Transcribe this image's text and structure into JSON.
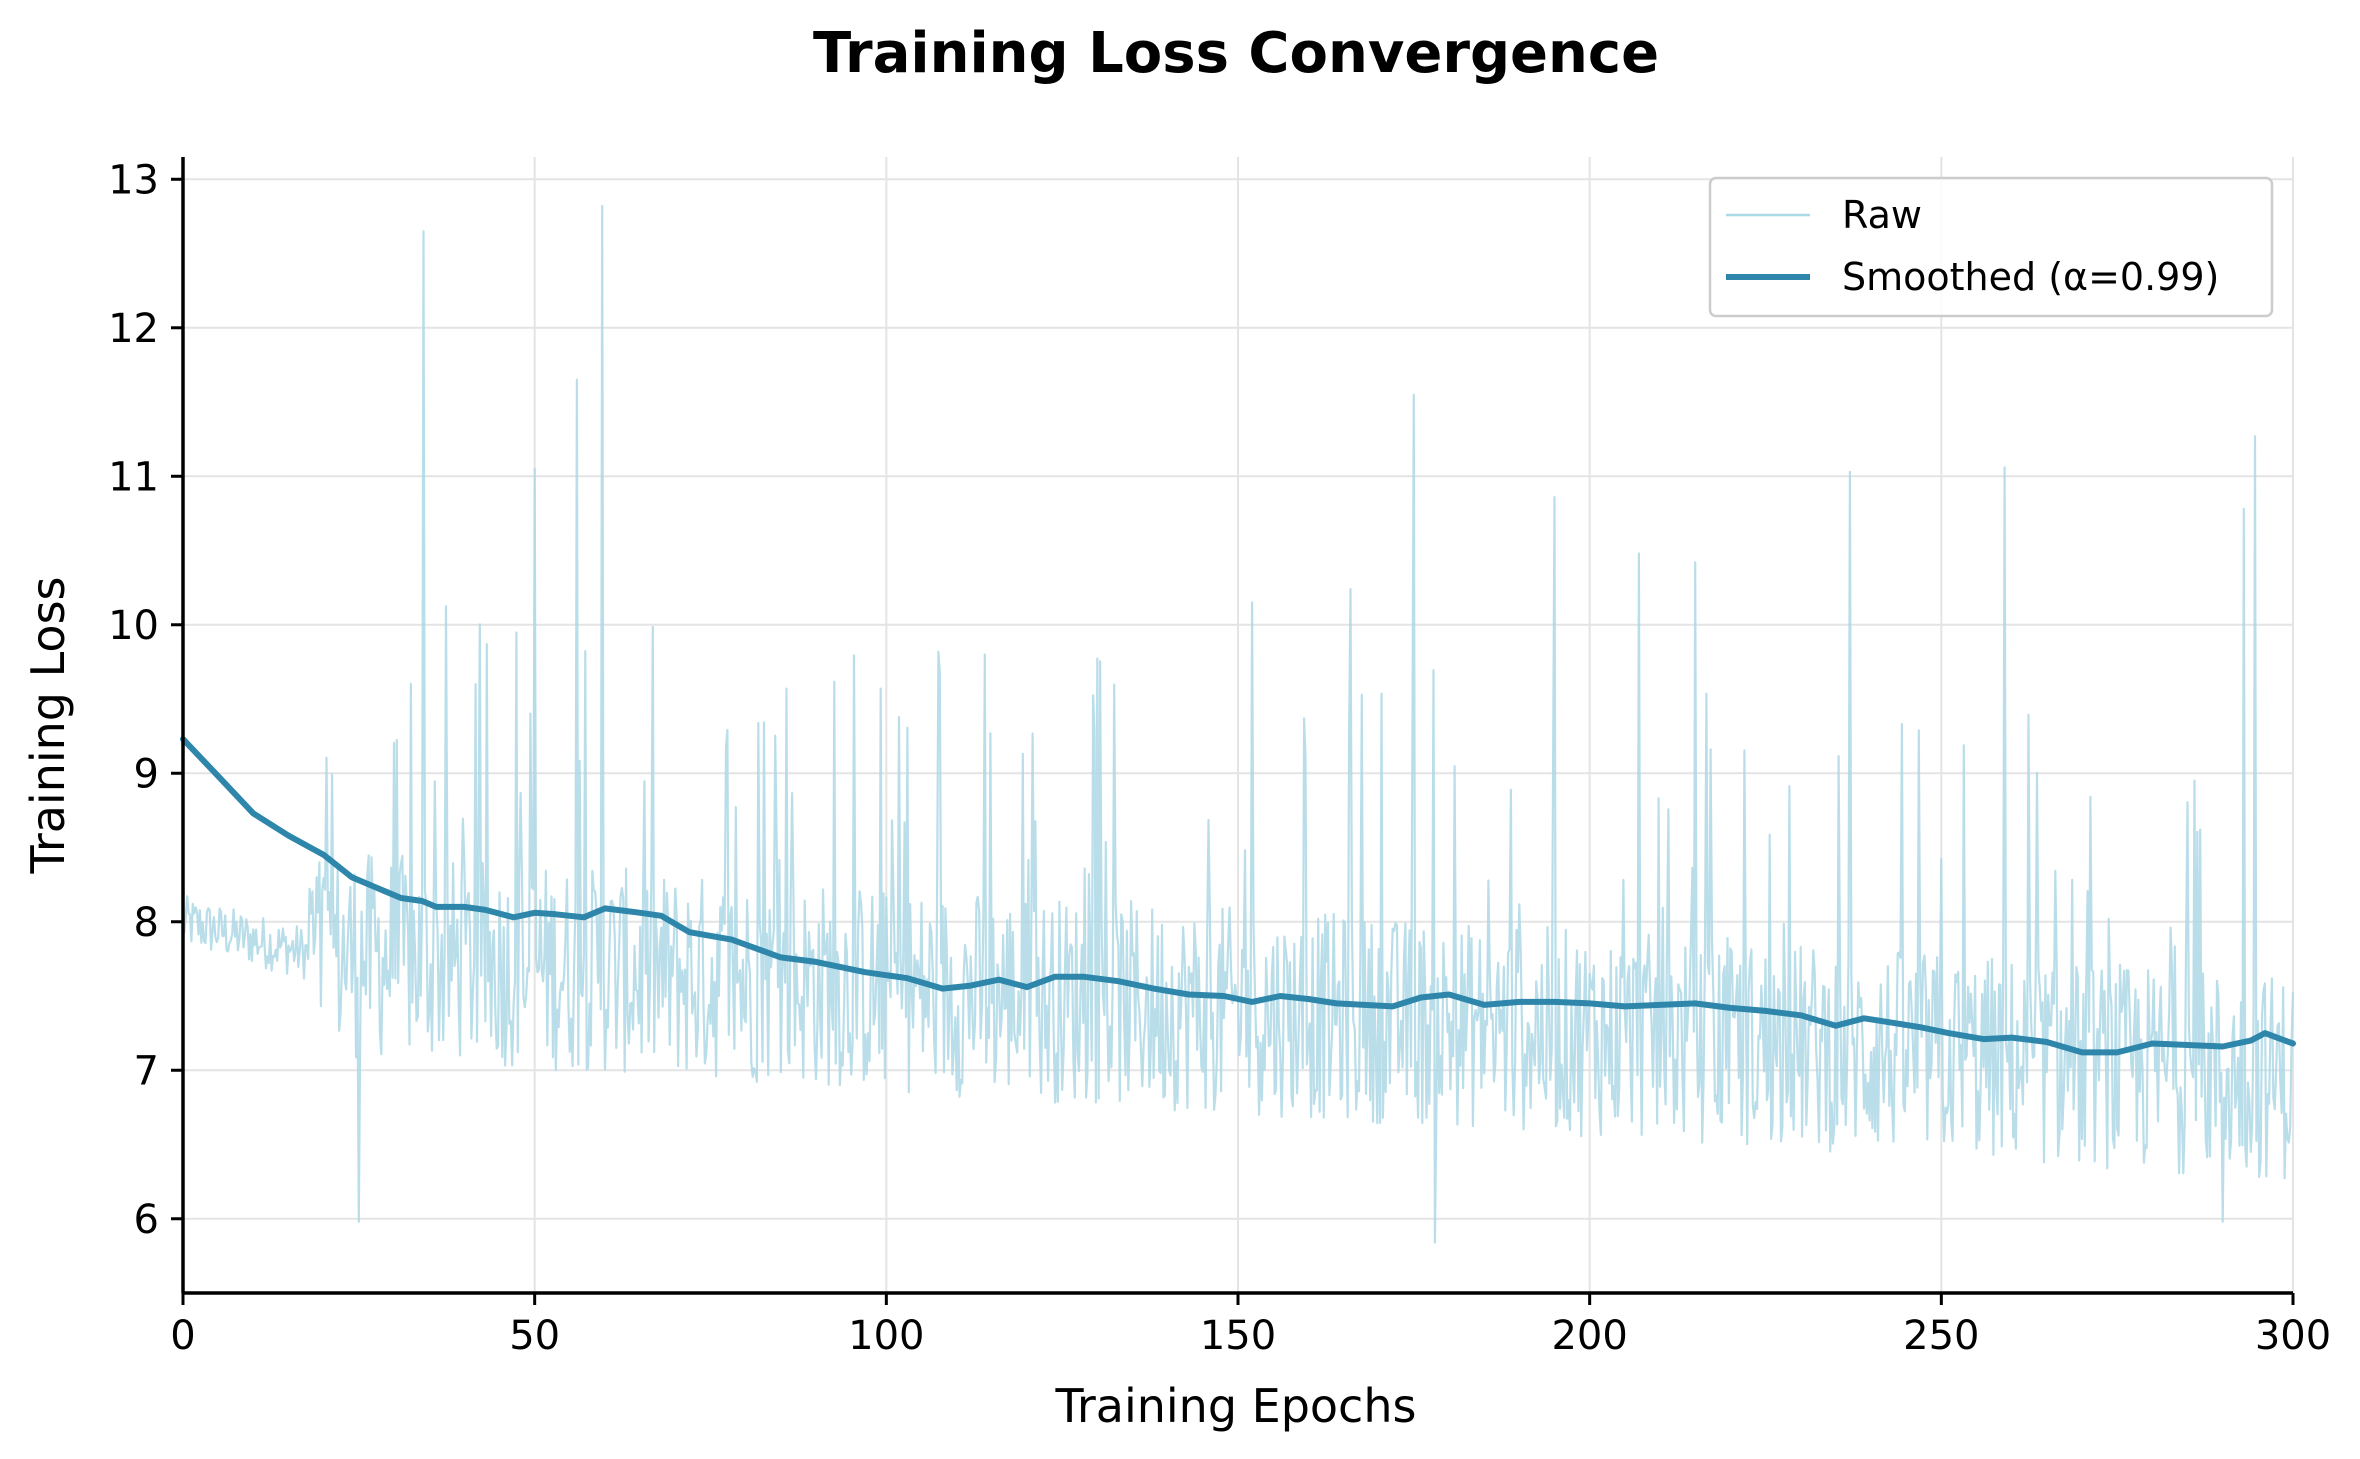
{
  "chart_data": {
    "type": "line",
    "title": "Training Loss Convergence",
    "xlabel": "Training Epochs",
    "ylabel": "Training Loss",
    "xlim": [
      0,
      300
    ],
    "ylim": [
      5.5,
      13.15
    ],
    "xticks": [
      0,
      50,
      100,
      150,
      200,
      250,
      300
    ],
    "xtick_labels": [
      "0",
      "50",
      "100",
      "150",
      "200",
      "250",
      "300"
    ],
    "yticks": [
      6,
      7,
      8,
      9,
      10,
      11,
      12,
      13
    ],
    "ytick_labels": [
      "6",
      "7",
      "8",
      "9",
      "10",
      "11",
      "12",
      "13"
    ],
    "grid": true,
    "legend_position": "top-right",
    "series": [
      {
        "name": "Raw",
        "color": "#add8e6",
        "style": "thin line, semi-transparent",
        "x_start": 0,
        "x_step": 0.2,
        "base_start": 7.85,
        "base_end": 6.95,
        "noise_amplitude": 0.7,
        "spikes": [
          {
            "x": 34.2,
            "y": 12.65
          },
          {
            "x": 50.0,
            "y": 11.05
          },
          {
            "x": 56.0,
            "y": 11.65
          },
          {
            "x": 59.5,
            "y": 12.82
          },
          {
            "x": 175.0,
            "y": 11.55
          },
          {
            "x": 237.0,
            "y": 11.03
          },
          {
            "x": 259.0,
            "y": 11.06
          },
          {
            "x": 294.5,
            "y": 11.27
          },
          {
            "x": 293.0,
            "y": 10.78
          },
          {
            "x": 195.0,
            "y": 10.86
          },
          {
            "x": 207.0,
            "y": 10.48
          },
          {
            "x": 215.0,
            "y": 10.42
          },
          {
            "x": 166.0,
            "y": 10.24
          },
          {
            "x": 152.0,
            "y": 10.15
          },
          {
            "x": 114.0,
            "y": 9.8
          },
          {
            "x": 25.0,
            "y": 5.98
          },
          {
            "x": 178.0,
            "y": 5.84
          },
          {
            "x": 290.0,
            "y": 5.98
          }
        ]
      },
      {
        "name": "Smoothed (α=0.99)",
        "color": "#2e86ab",
        "style": "thick line",
        "points": [
          [
            0,
            9.23
          ],
          [
            5,
            8.98
          ],
          [
            10,
            8.73
          ],
          [
            15,
            8.58
          ],
          [
            20,
            8.45
          ],
          [
            24,
            8.3
          ],
          [
            28,
            8.22
          ],
          [
            31,
            8.16
          ],
          [
            34,
            8.14
          ],
          [
            36,
            8.1
          ],
          [
            40,
            8.1
          ],
          [
            43,
            8.08
          ],
          [
            47,
            8.03
          ],
          [
            50,
            8.06
          ],
          [
            53,
            8.05
          ],
          [
            57,
            8.03
          ],
          [
            60,
            8.09
          ],
          [
            65,
            8.06
          ],
          [
            68,
            8.04
          ],
          [
            72,
            7.93
          ],
          [
            78,
            7.88
          ],
          [
            85,
            7.76
          ],
          [
            90,
            7.73
          ],
          [
            97,
            7.66
          ],
          [
            103,
            7.62
          ],
          [
            108,
            7.55
          ],
          [
            112,
            7.57
          ],
          [
            116,
            7.61
          ],
          [
            120,
            7.56
          ],
          [
            124,
            7.63
          ],
          [
            128,
            7.63
          ],
          [
            133,
            7.6
          ],
          [
            138,
            7.55
          ],
          [
            143,
            7.51
          ],
          [
            148,
            7.5
          ],
          [
            152,
            7.46
          ],
          [
            156,
            7.5
          ],
          [
            160,
            7.48
          ],
          [
            164,
            7.45
          ],
          [
            168,
            7.44
          ],
          [
            172,
            7.43
          ],
          [
            176,
            7.49
          ],
          [
            180,
            7.51
          ],
          [
            185,
            7.44
          ],
          [
            190,
            7.46
          ],
          [
            195,
            7.46
          ],
          [
            200,
            7.45
          ],
          [
            205,
            7.43
          ],
          [
            210,
            7.44
          ],
          [
            215,
            7.45
          ],
          [
            220,
            7.42
          ],
          [
            225,
            7.4
          ],
          [
            230,
            7.37
          ],
          [
            235,
            7.3
          ],
          [
            239,
            7.35
          ],
          [
            243,
            7.32
          ],
          [
            247,
            7.29
          ],
          [
            251,
            7.25
          ],
          [
            256,
            7.21
          ],
          [
            260,
            7.22
          ],
          [
            265,
            7.19
          ],
          [
            270,
            7.12
          ],
          [
            275,
            7.12
          ],
          [
            280,
            7.18
          ],
          [
            285,
            7.17
          ],
          [
            290,
            7.16
          ],
          [
            294,
            7.2
          ],
          [
            296,
            7.25
          ],
          [
            300,
            7.18
          ]
        ]
      }
    ]
  }
}
